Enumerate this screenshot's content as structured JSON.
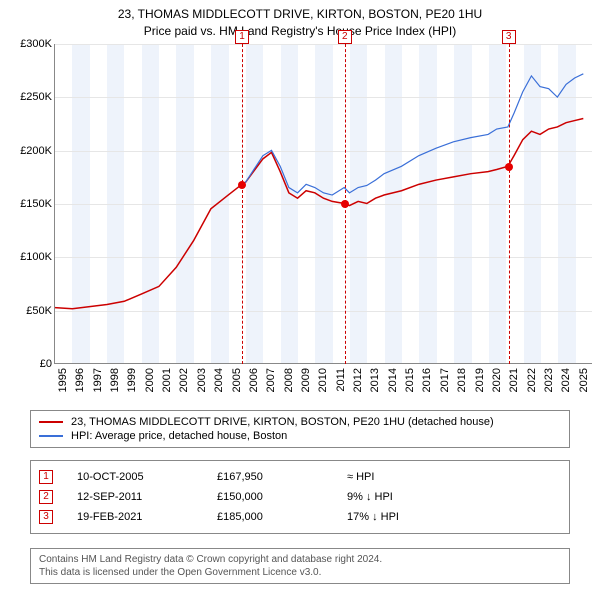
{
  "title_line1": "23, THOMAS MIDDLECOTT DRIVE, KIRTON, BOSTON, PE20 1HU",
  "title_line2": "Price paid vs. HM Land Registry's House Price Index (HPI)",
  "chart": {
    "type": "line",
    "background_color": "#ffffff",
    "band_color": "#eef3fb",
    "grid_color": "#e6e6e6",
    "axis_color": "#888888",
    "xlim": [
      1995,
      2026
    ],
    "ylim": [
      0,
      300000
    ],
    "y_ticks": [
      {
        "v": 0,
        "label": "£0"
      },
      {
        "v": 50000,
        "label": "£50K"
      },
      {
        "v": 100000,
        "label": "£100K"
      },
      {
        "v": 150000,
        "label": "£150K"
      },
      {
        "v": 200000,
        "label": "£200K"
      },
      {
        "v": 250000,
        "label": "£250K"
      },
      {
        "v": 300000,
        "label": "£300K"
      }
    ],
    "x_years": [
      1995,
      1996,
      1997,
      1998,
      1999,
      2000,
      2001,
      2002,
      2003,
      2004,
      2005,
      2006,
      2007,
      2008,
      2009,
      2010,
      2011,
      2012,
      2013,
      2014,
      2015,
      2016,
      2017,
      2018,
      2019,
      2020,
      2021,
      2022,
      2023,
      2024,
      2025
    ],
    "band_years": [
      1996,
      1998,
      2000,
      2002,
      2004,
      2006,
      2008,
      2010,
      2012,
      2014,
      2016,
      2018,
      2020,
      2022,
      2024
    ],
    "series": [
      {
        "name": "property",
        "color": "#cc0000",
        "width": 1.5,
        "points": [
          [
            1995,
            52000
          ],
          [
            1996,
            51000
          ],
          [
            1997,
            53000
          ],
          [
            1998,
            55000
          ],
          [
            1999,
            58000
          ],
          [
            2000,
            65000
          ],
          [
            2001,
            72000
          ],
          [
            2002,
            90000
          ],
          [
            2003,
            115000
          ],
          [
            2004,
            145000
          ],
          [
            2005,
            158000
          ],
          [
            2005.78,
            167950
          ],
          [
            2006,
            170000
          ],
          [
            2007,
            192000
          ],
          [
            2007.5,
            198000
          ],
          [
            2008,
            180000
          ],
          [
            2008.5,
            160000
          ],
          [
            2009,
            155000
          ],
          [
            2009.5,
            162000
          ],
          [
            2010,
            160000
          ],
          [
            2010.5,
            155000
          ],
          [
            2011,
            152000
          ],
          [
            2011.7,
            150000
          ],
          [
            2012,
            148000
          ],
          [
            2012.5,
            152000
          ],
          [
            2013,
            150000
          ],
          [
            2013.5,
            155000
          ],
          [
            2014,
            158000
          ],
          [
            2015,
            162000
          ],
          [
            2016,
            168000
          ],
          [
            2017,
            172000
          ],
          [
            2018,
            175000
          ],
          [
            2019,
            178000
          ],
          [
            2020,
            180000
          ],
          [
            2020.5,
            182000
          ],
          [
            2021.14,
            185000
          ],
          [
            2021.5,
            195000
          ],
          [
            2022,
            210000
          ],
          [
            2022.5,
            218000
          ],
          [
            2023,
            215000
          ],
          [
            2023.5,
            220000
          ],
          [
            2024,
            222000
          ],
          [
            2024.5,
            226000
          ],
          [
            2025,
            228000
          ],
          [
            2025.5,
            230000
          ]
        ]
      },
      {
        "name": "hpi",
        "color": "#3a6fd8",
        "width": 1.2,
        "points": [
          [
            2005.78,
            167950
          ],
          [
            2006,
            170000
          ],
          [
            2007,
            195000
          ],
          [
            2007.5,
            200000
          ],
          [
            2008,
            185000
          ],
          [
            2008.5,
            165000
          ],
          [
            2009,
            160000
          ],
          [
            2009.5,
            168000
          ],
          [
            2010,
            165000
          ],
          [
            2010.5,
            160000
          ],
          [
            2011,
            158000
          ],
          [
            2011.7,
            165000
          ],
          [
            2012,
            160000
          ],
          [
            2012.5,
            165000
          ],
          [
            2013,
            167000
          ],
          [
            2013.5,
            172000
          ],
          [
            2014,
            178000
          ],
          [
            2015,
            185000
          ],
          [
            2016,
            195000
          ],
          [
            2017,
            202000
          ],
          [
            2018,
            208000
          ],
          [
            2019,
            212000
          ],
          [
            2020,
            215000
          ],
          [
            2020.5,
            220000
          ],
          [
            2021.14,
            222000
          ],
          [
            2021.5,
            235000
          ],
          [
            2022,
            255000
          ],
          [
            2022.5,
            270000
          ],
          [
            2023,
            260000
          ],
          [
            2023.5,
            258000
          ],
          [
            2024,
            250000
          ],
          [
            2024.5,
            262000
          ],
          [
            2025,
            268000
          ],
          [
            2025.5,
            272000
          ]
        ]
      }
    ],
    "markers": [
      {
        "num": "1",
        "x": 2005.78,
        "y": 167950
      },
      {
        "num": "2",
        "x": 2011.7,
        "y": 150000
      },
      {
        "num": "3",
        "x": 2021.14,
        "y": 185000
      }
    ]
  },
  "legend": {
    "items": [
      {
        "color": "#cc0000",
        "label": "23, THOMAS MIDDLECOTT DRIVE, KIRTON, BOSTON, PE20 1HU (detached house)"
      },
      {
        "color": "#3a6fd8",
        "label": "HPI: Average price, detached house, Boston"
      }
    ]
  },
  "sales": [
    {
      "num": "1",
      "date": "10-OCT-2005",
      "price": "£167,950",
      "hpi": "≈ HPI"
    },
    {
      "num": "2",
      "date": "12-SEP-2011",
      "price": "£150,000",
      "hpi": "9% ↓ HPI"
    },
    {
      "num": "3",
      "date": "19-FEB-2021",
      "price": "£185,000",
      "hpi": "17% ↓ HPI"
    }
  ],
  "attribution_line1": "Contains HM Land Registry data © Crown copyright and database right 2024.",
  "attribution_line2": "This data is licensed under the Open Government Licence v3.0."
}
